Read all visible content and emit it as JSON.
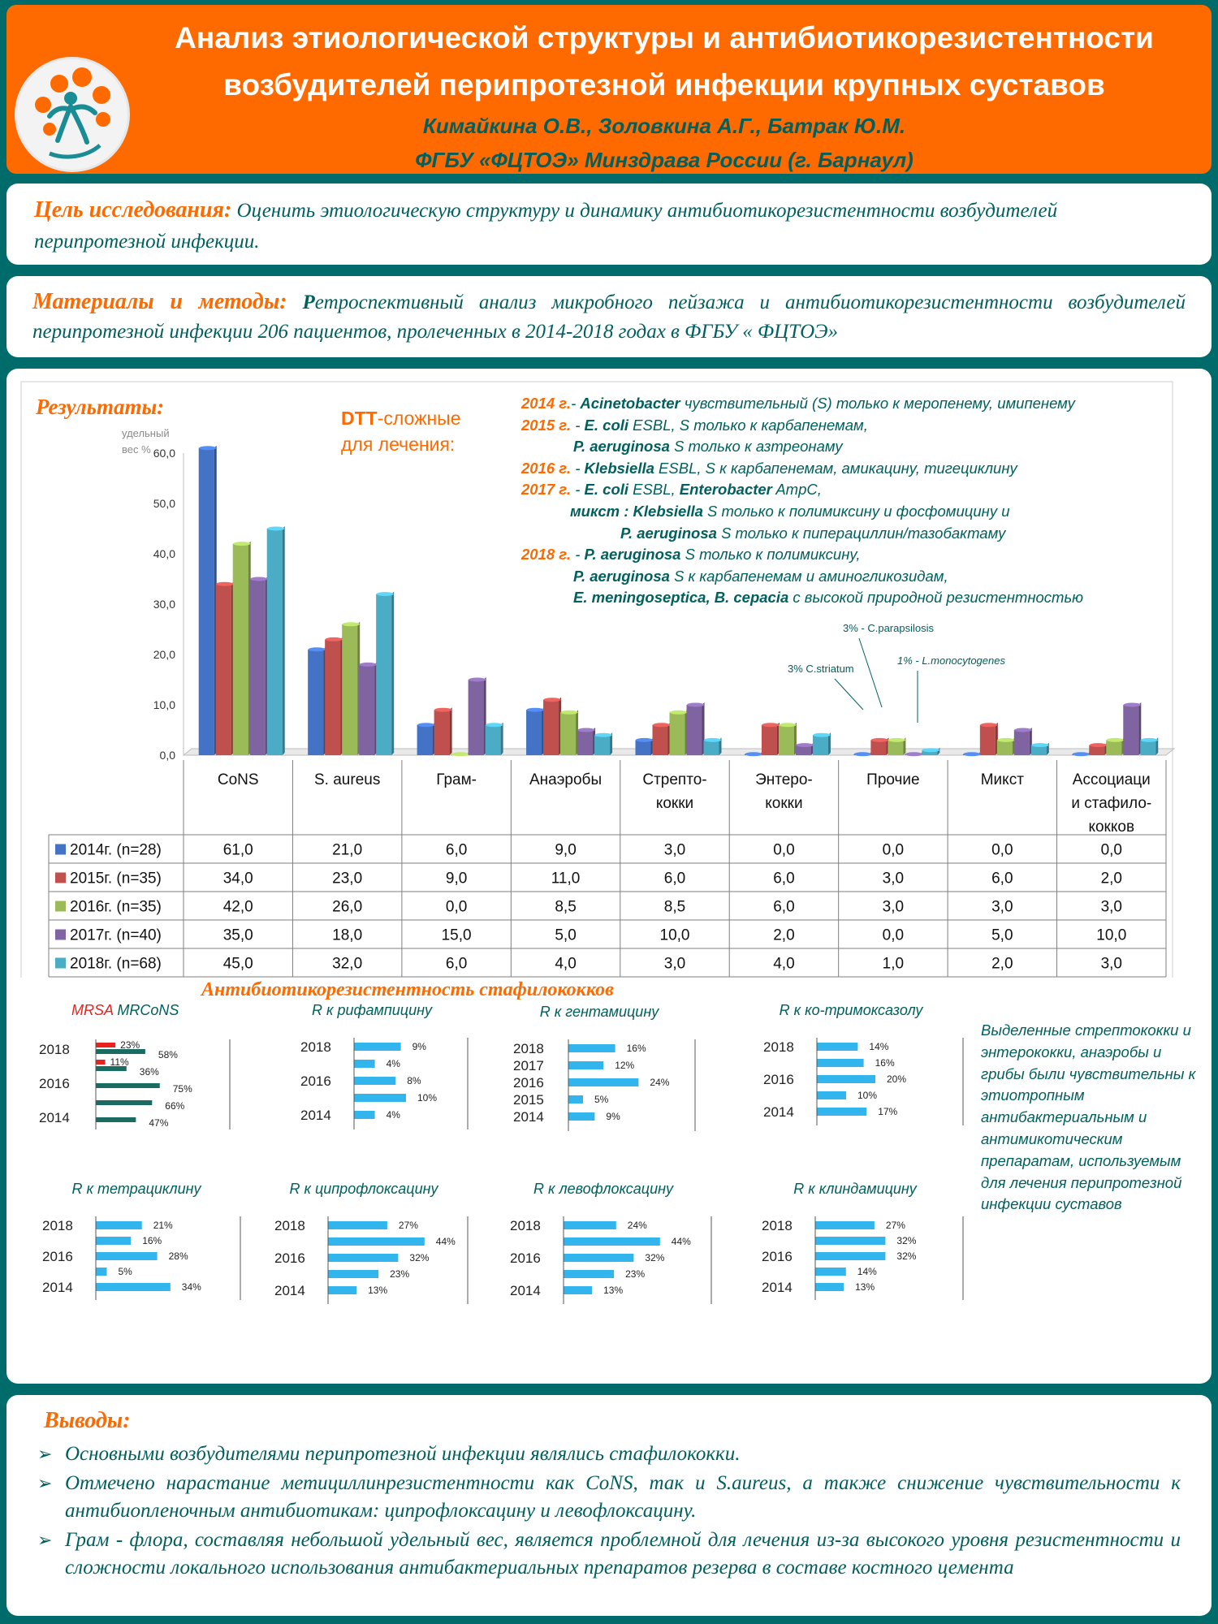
{
  "header": {
    "title_line1": "Анализ этиологической структуры и антибиотикорезистентности",
    "title_line2": "возбудителей перипротезной инфекции крупных суставов",
    "authors": "Кимайкина О.В., Золовкина А.Г., Батрак Ю.М.",
    "institution": "ФГБУ «ФЦТОЭ» Минздрава России (г. Барнаул)"
  },
  "aim": {
    "label": "Цель исследования:",
    "text": " Оценить этиологическую структуру и динамику антибиотикорезистентности возбудителей перипротезной инфекции."
  },
  "methods": {
    "label": "Материалы и методы:",
    "lead": " Р",
    "text": "етроспективный анализ микробного пейзажа и антибиотикорезистентности возбудителей перипротезной инфекции  206 пациентов, пролеченных в 2014-2018 годах в ФГБУ « ФЦТОЭ»"
  },
  "results": {
    "label": "Результаты:",
    "dtt_bold": "DTT",
    "dtt_rest": "-сложные",
    "dtt_line2": "для лечения:",
    "notes": [
      {
        "year": "2014 г.",
        "parts": [
          {
            "t": "- ",
            "b": false
          },
          {
            "t": "Acinetobacter",
            "b": true
          },
          {
            "t": " чувствительный (S) только к меропенему, имипенему",
            "b": false
          }
        ]
      },
      {
        "year": "2015 г.",
        "parts": [
          {
            "t": " -  ",
            "b": false
          },
          {
            "t": "E. coli",
            "b": true
          },
          {
            "t": "  ESBL, S только к карбапенемам,",
            "b": false
          }
        ]
      },
      {
        "year": "",
        "indent": 64,
        "parts": [
          {
            "t": "P. aeruginosa",
            "b": true
          },
          {
            "t": "  S только к азтреонаму",
            "b": false
          }
        ]
      },
      {
        "year": "2016 г.",
        "parts": [
          {
            "t": " - ",
            "b": false
          },
          {
            "t": "Klebsiella",
            "b": true
          },
          {
            "t": "  ESBL, S к карбапенемам, амикацину, тигециклину",
            "b": false
          }
        ]
      },
      {
        "year": "2017 г.",
        "parts": [
          {
            "t": " - ",
            "b": false
          },
          {
            "t": "E. coli",
            "b": true
          },
          {
            "t": "  ESBL, ",
            "b": false
          },
          {
            "t": "Enterobacter",
            "b": true
          },
          {
            "t": " AmpC,",
            "b": false
          }
        ]
      },
      {
        "year": "",
        "indent": 60,
        "parts": [
          {
            "t": "микст : Klebsiella",
            "b": true
          },
          {
            "t": " S только к полимиксину и фосфомицину и",
            "b": false
          }
        ]
      },
      {
        "year": "",
        "indent": 122,
        "parts": [
          {
            "t": "P. aeruginosa",
            "b": true
          },
          {
            "t": " S только к пиперациллин/тазобактаму",
            "b": false
          }
        ]
      },
      {
        "year": "2018 г.",
        "parts": [
          {
            "t": " - ",
            "b": false
          },
          {
            "t": "P. aeruginosa",
            "b": true
          },
          {
            "t": " S только к полимиксину,",
            "b": false
          }
        ]
      },
      {
        "year": "",
        "indent": 64,
        "parts": [
          {
            "t": "P. aeruginosa",
            "b": true
          },
          {
            "t": " S к карбапенемам и аминогликозидам,",
            "b": false
          }
        ]
      },
      {
        "year": "",
        "indent": 64,
        "parts": [
          {
            "t": "E. meningoseptica, B. cepacia",
            "b": true
          },
          {
            "t": " с высокой природной резистентностью",
            "b": false
          }
        ]
      }
    ],
    "annotations": {
      "parapsilosis": "3% - C.parapsilosis",
      "striatum": "3% C.striatum",
      "monocytogenes": "1% - L.monocytogenes"
    }
  },
  "chart_data": [
    {
      "type": "bar",
      "ylabel": "удельный вес %",
      "ylim": [
        0,
        60
      ],
      "yticks": [
        "0,0",
        "10,0",
        "20,0",
        "30,0",
        "40,0",
        "50,0",
        "60,0"
      ],
      "categories": [
        "CoNS",
        "S. aureus",
        "Грам-",
        "Анаэробы",
        "Стрепто-\nкокки",
        "Энтеро-\nкокки",
        "Прочие",
        "Микст",
        "Ассоциаци\nи стафило-\nкокков"
      ],
      "series": [
        {
          "name": "2014г. (n=28)",
          "color": "#4472c4",
          "values": [
            61,
            21,
            6,
            9,
            3,
            0,
            0,
            0,
            0
          ],
          "labels": [
            "61,0",
            "21,0",
            "6,0",
            "9,0",
            "3,0",
            "0,0",
            "0,0",
            "0,0",
            "0,0"
          ]
        },
        {
          "name": "2015г. (n=35)",
          "color": "#c0504d",
          "values": [
            34,
            23,
            9,
            11,
            6,
            6,
            3,
            6,
            2
          ],
          "labels": [
            "34,0",
            "23,0",
            "9,0",
            "11,0",
            "6,0",
            "6,0",
            "3,0",
            "6,0",
            "2,0"
          ]
        },
        {
          "name": "2016г. (n=35)",
          "color": "#9bbb59",
          "values": [
            42,
            26,
            0,
            8.5,
            8.5,
            6,
            3,
            3,
            3
          ],
          "labels": [
            "42,0",
            "26,0",
            "0,0",
            "8,5",
            "8,5",
            "6,0",
            "3,0",
            "3,0",
            "3,0"
          ]
        },
        {
          "name": "2017г. (n=40)",
          "color": "#8064a2",
          "values": [
            35,
            18,
            15,
            5,
            10,
            2,
            0,
            5,
            10
          ],
          "labels": [
            "35,0",
            "18,0",
            "15,0",
            "5,0",
            "10,0",
            "2,0",
            "0,0",
            "5,0",
            "10,0"
          ]
        },
        {
          "name": "2018г. (n=68)",
          "color": "#4bacc6",
          "values": [
            45,
            32,
            6,
            4,
            3,
            4,
            1,
            2,
            3
          ],
          "labels": [
            "45,0",
            "32,0",
            "6,0",
            "4,0",
            "3,0",
            "4,0",
            "1,0",
            "2,0",
            "3,0"
          ]
        }
      ]
    },
    {
      "type": "bar",
      "orientation": "horizontal",
      "title_a": "MRSA",
      "title_b": "MRCoNS",
      "colors": {
        "MRSA": "#e8221e",
        "MRCoNS": "#1a6b62"
      },
      "rows": [
        {
          "label": "2018",
          "bars": [
            {
              "s": "MRSA",
              "v": 23,
              "t": "23%"
            },
            {
              "s": "MRCoNS",
              "v": 58,
              "t": "58%"
            }
          ]
        },
        {
          "label": "",
          "bars": [
            {
              "s": "MRSA",
              "v": 11,
              "t": "11%"
            },
            {
              "s": "MRCoNS",
              "v": 36,
              "t": "36%"
            }
          ]
        },
        {
          "label": "2016",
          "bars": [
            {
              "s": "MRCoNS",
              "v": 75,
              "t": "75%"
            }
          ]
        },
        {
          "label": "",
          "bars": [
            {
              "s": "MRCoNS",
              "v": 66,
              "t": "66%"
            }
          ]
        },
        {
          "label": "2014",
          "bars": [
            {
              "s": "MRCoNS",
              "v": 47,
              "t": "47%"
            }
          ]
        }
      ]
    },
    {
      "type": "bar",
      "orientation": "horizontal",
      "title": "R  к рифампицину",
      "color": "#31b5ec",
      "rows": [
        {
          "label": "2018",
          "v": 9,
          "t": "9%"
        },
        {
          "label": "",
          "v": 4,
          "t": "4%"
        },
        {
          "label": "2016",
          "v": 8,
          "t": "8%"
        },
        {
          "label": "",
          "v": 10,
          "t": "10%"
        },
        {
          "label": "2014",
          "v": 4,
          "t": "4%"
        }
      ]
    },
    {
      "type": "bar",
      "orientation": "horizontal",
      "title": "R  к гентамицину",
      "color": "#31b5ec",
      "rows": [
        {
          "label": "2018",
          "v": 16,
          "t": "16%"
        },
        {
          "label": "2017",
          "v": 12,
          "t": "12%"
        },
        {
          "label": "2016",
          "v": 24,
          "t": "24%"
        },
        {
          "label": "2015",
          "v": 5,
          "t": "5%"
        },
        {
          "label": "2014",
          "v": 9,
          "t": "9%"
        }
      ]
    },
    {
      "type": "bar",
      "orientation": "horizontal",
      "title": "R  к ко-тримоксазолу",
      "color": "#31b5ec",
      "rows": [
        {
          "label": "2018",
          "v": 14,
          "t": "14%"
        },
        {
          "label": "",
          "v": 16,
          "t": "16%"
        },
        {
          "label": "2016",
          "v": 20,
          "t": "20%"
        },
        {
          "label": "",
          "v": 10,
          "t": "10%"
        },
        {
          "label": "2014",
          "v": 17,
          "t": "17%"
        }
      ]
    },
    {
      "type": "bar",
      "orientation": "horizontal",
      "title": "R  к тетрациклину",
      "color": "#31b5ec",
      "rows": [
        {
          "label": "2018",
          "v": 21,
          "t": "21%"
        },
        {
          "label": "",
          "v": 16,
          "t": "16%"
        },
        {
          "label": "2016",
          "v": 28,
          "t": "28%"
        },
        {
          "label": "",
          "v": 5,
          "t": "5%"
        },
        {
          "label": "2014",
          "v": 34,
          "t": "34%"
        }
      ]
    },
    {
      "type": "bar",
      "orientation": "horizontal",
      "title": "R к ципрофлоксацину",
      "color": "#31b5ec",
      "rows": [
        {
          "label": "2018",
          "v": 27,
          "t": "27%"
        },
        {
          "label": "",
          "v": 44,
          "t": "44%"
        },
        {
          "label": "2016",
          "v": 32,
          "t": "32%"
        },
        {
          "label": "",
          "v": 23,
          "t": "23%"
        },
        {
          "label": "2014",
          "v": 13,
          "t": "13%"
        }
      ]
    },
    {
      "type": "bar",
      "orientation": "horizontal",
      "title": "R к левофлоксацину",
      "color": "#31b5ec",
      "rows": [
        {
          "label": "2018",
          "v": 24,
          "t": "24%"
        },
        {
          "label": "",
          "v": 44,
          "t": "44%"
        },
        {
          "label": "2016",
          "v": 32,
          "t": "32%"
        },
        {
          "label": "",
          "v": 23,
          "t": "23%"
        },
        {
          "label": "2014",
          "v": 13,
          "t": "13%"
        }
      ]
    },
    {
      "type": "bar",
      "orientation": "horizontal",
      "title": "R  к клиндамицину",
      "color": "#31b5ec",
      "rows": [
        {
          "label": "2018",
          "v": 27,
          "t": "27%"
        },
        {
          "label": "",
          "v": 32,
          "t": "32%"
        },
        {
          "label": "2016",
          "v": 32,
          "t": "32%"
        },
        {
          "label": "",
          "v": 14,
          "t": "14%"
        },
        {
          "label": "2014",
          "v": 13,
          "t": "13%"
        }
      ]
    }
  ],
  "antibiotic_title": "Антибиотикорезистентность стафилококков",
  "side_note": "Выделенные стрептококки и энтерококки, анаэробы и грибы были чувствительны к этиотропным антибактериальным и антимикотическим препаратам, используемым для лечения перипротезной инфекции суставов",
  "conclusions": {
    "label": "Выводы:",
    "bullet": "➢",
    "items": [
      "Основными возбудителями перипротезной инфекции являлись стафилококки.",
      "Отмечено нарастание метициллинрезистентности   как CoNS, так и S.aureus, а также снижение чувствительности к антибиопленочным   антибиотикам: ципрофлоксацину и левофлоксацину.",
      "Грам - флора, составляя небольшой удельный вес, является проблемной для лечения из-за высокого уровня резистентности и сложности локального использования антибактериальных препаратов резерва в составе костного цемента"
    ]
  }
}
